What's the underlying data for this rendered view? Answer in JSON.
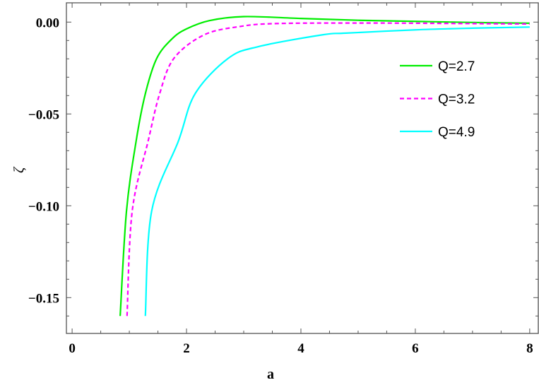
{
  "chart_data": {
    "type": "line",
    "title": "",
    "xlabel": "a",
    "ylabel": "ζ",
    "xlim": [
      -0.1,
      8.15
    ],
    "ylim": [
      -0.1695,
      0.0105
    ],
    "x_ticks": [
      0,
      2,
      4,
      6,
      8
    ],
    "x_tick_labels": [
      "0",
      "2",
      "4",
      "6",
      "8"
    ],
    "y_ticks": [
      0.0,
      -0.05,
      -0.1,
      -0.15
    ],
    "y_tick_labels": [
      "0.00",
      "−0.05",
      "−0.10",
      "−0.15"
    ],
    "grid": false,
    "legend_position": "top-right",
    "series": [
      {
        "name": "Q=2.7",
        "color": "#00ee00",
        "dash": "solid",
        "x": [
          0.84,
          0.95,
          1.12,
          1.28,
          1.48,
          1.75,
          2.0,
          2.4,
          3.0,
          4.0,
          5.0,
          6.0,
          7.0,
          8.0
        ],
        "y": [
          -0.16,
          -0.103,
          -0.0646,
          -0.039,
          -0.0197,
          -0.009,
          -0.0037,
          0.0008,
          0.003,
          0.002,
          0.001,
          0.0004,
          -0.0002,
          -0.0006
        ]
      },
      {
        "name": "Q=3.2",
        "color": "#ff00ff",
        "dash": "dashed",
        "x": [
          0.96,
          1.05,
          1.33,
          1.53,
          1.78,
          2.31,
          2.93,
          3.55,
          5.0,
          6.5,
          8.0
        ],
        "y": [
          -0.16,
          -0.103,
          -0.0646,
          -0.039,
          -0.0197,
          -0.0069,
          -0.0024,
          -0.0008,
          -0.0005,
          -0.0007,
          -0.001
        ]
      },
      {
        "name": "Q=4.9",
        "color": "#00ffff",
        "dash": "solid",
        "x": [
          1.28,
          1.39,
          1.86,
          2.15,
          2.73,
          3.26,
          4.38,
          4.79,
          6.0,
          7.0,
          8.0
        ],
        "y": [
          -0.16,
          -0.103,
          -0.0646,
          -0.039,
          -0.0197,
          -0.0133,
          -0.0069,
          -0.006,
          -0.0042,
          -0.0033,
          -0.0027
        ]
      }
    ]
  }
}
